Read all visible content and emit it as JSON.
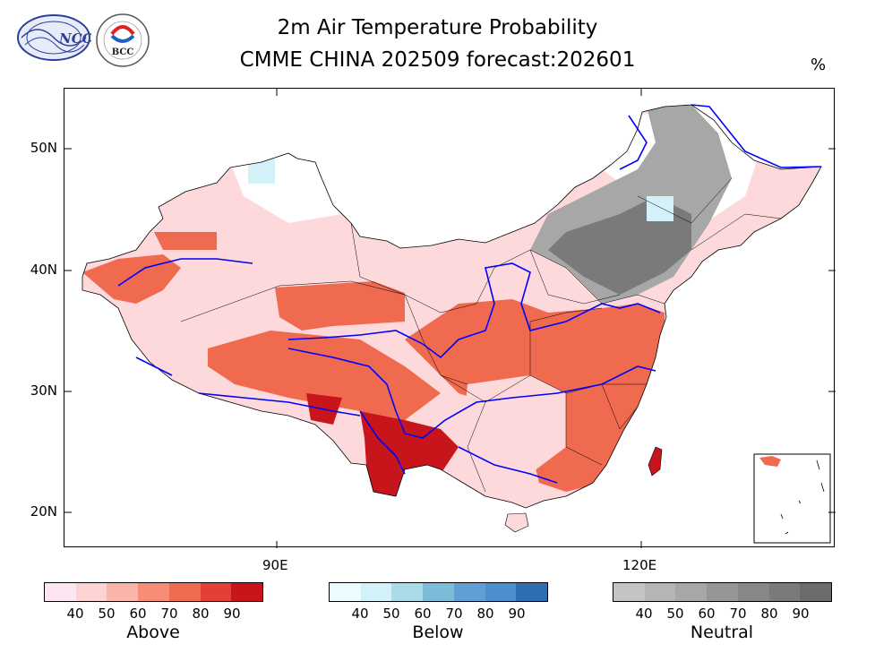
{
  "title": {
    "line1": "2m Air Temperature Probability",
    "line2": "CMME CHINA 202509 forecast:202601"
  },
  "unit_label": "%",
  "logos": {
    "left_text": "NCC",
    "right_text": "BCC"
  },
  "axes": {
    "lat_labels": [
      "50N",
      "40N",
      "30N",
      "20N"
    ],
    "lon_labels": [
      "90E",
      "120E"
    ]
  },
  "legends": {
    "above": {
      "title": "Above",
      "ticks": [
        "40",
        "50",
        "60",
        "70",
        "80",
        "90"
      ],
      "colors": [
        "#fde6f2",
        "#fdd2d2",
        "#fbb4a8",
        "#f78c77",
        "#f06a50",
        "#e23f36",
        "#c8151b"
      ]
    },
    "below": {
      "title": "Below",
      "ticks": [
        "40",
        "50",
        "60",
        "70",
        "80",
        "90"
      ],
      "colors": [
        "#eafcfd",
        "#d2f1f8",
        "#a9dbe8",
        "#7cbcd9",
        "#5f9fd6",
        "#4b8fcf",
        "#2e6fb3"
      ]
    },
    "neutral": {
      "title": "Neutral",
      "ticks": [
        "40",
        "50",
        "60",
        "70",
        "80",
        "90"
      ],
      "colors": [
        "#c4c4c4",
        "#b5b5b5",
        "#a7a7a7",
        "#969696",
        "#878787",
        "#7a7a7a",
        "#6c6c6c"
      ]
    }
  },
  "colors": {
    "river": "#0000ff",
    "border": "#000000"
  }
}
